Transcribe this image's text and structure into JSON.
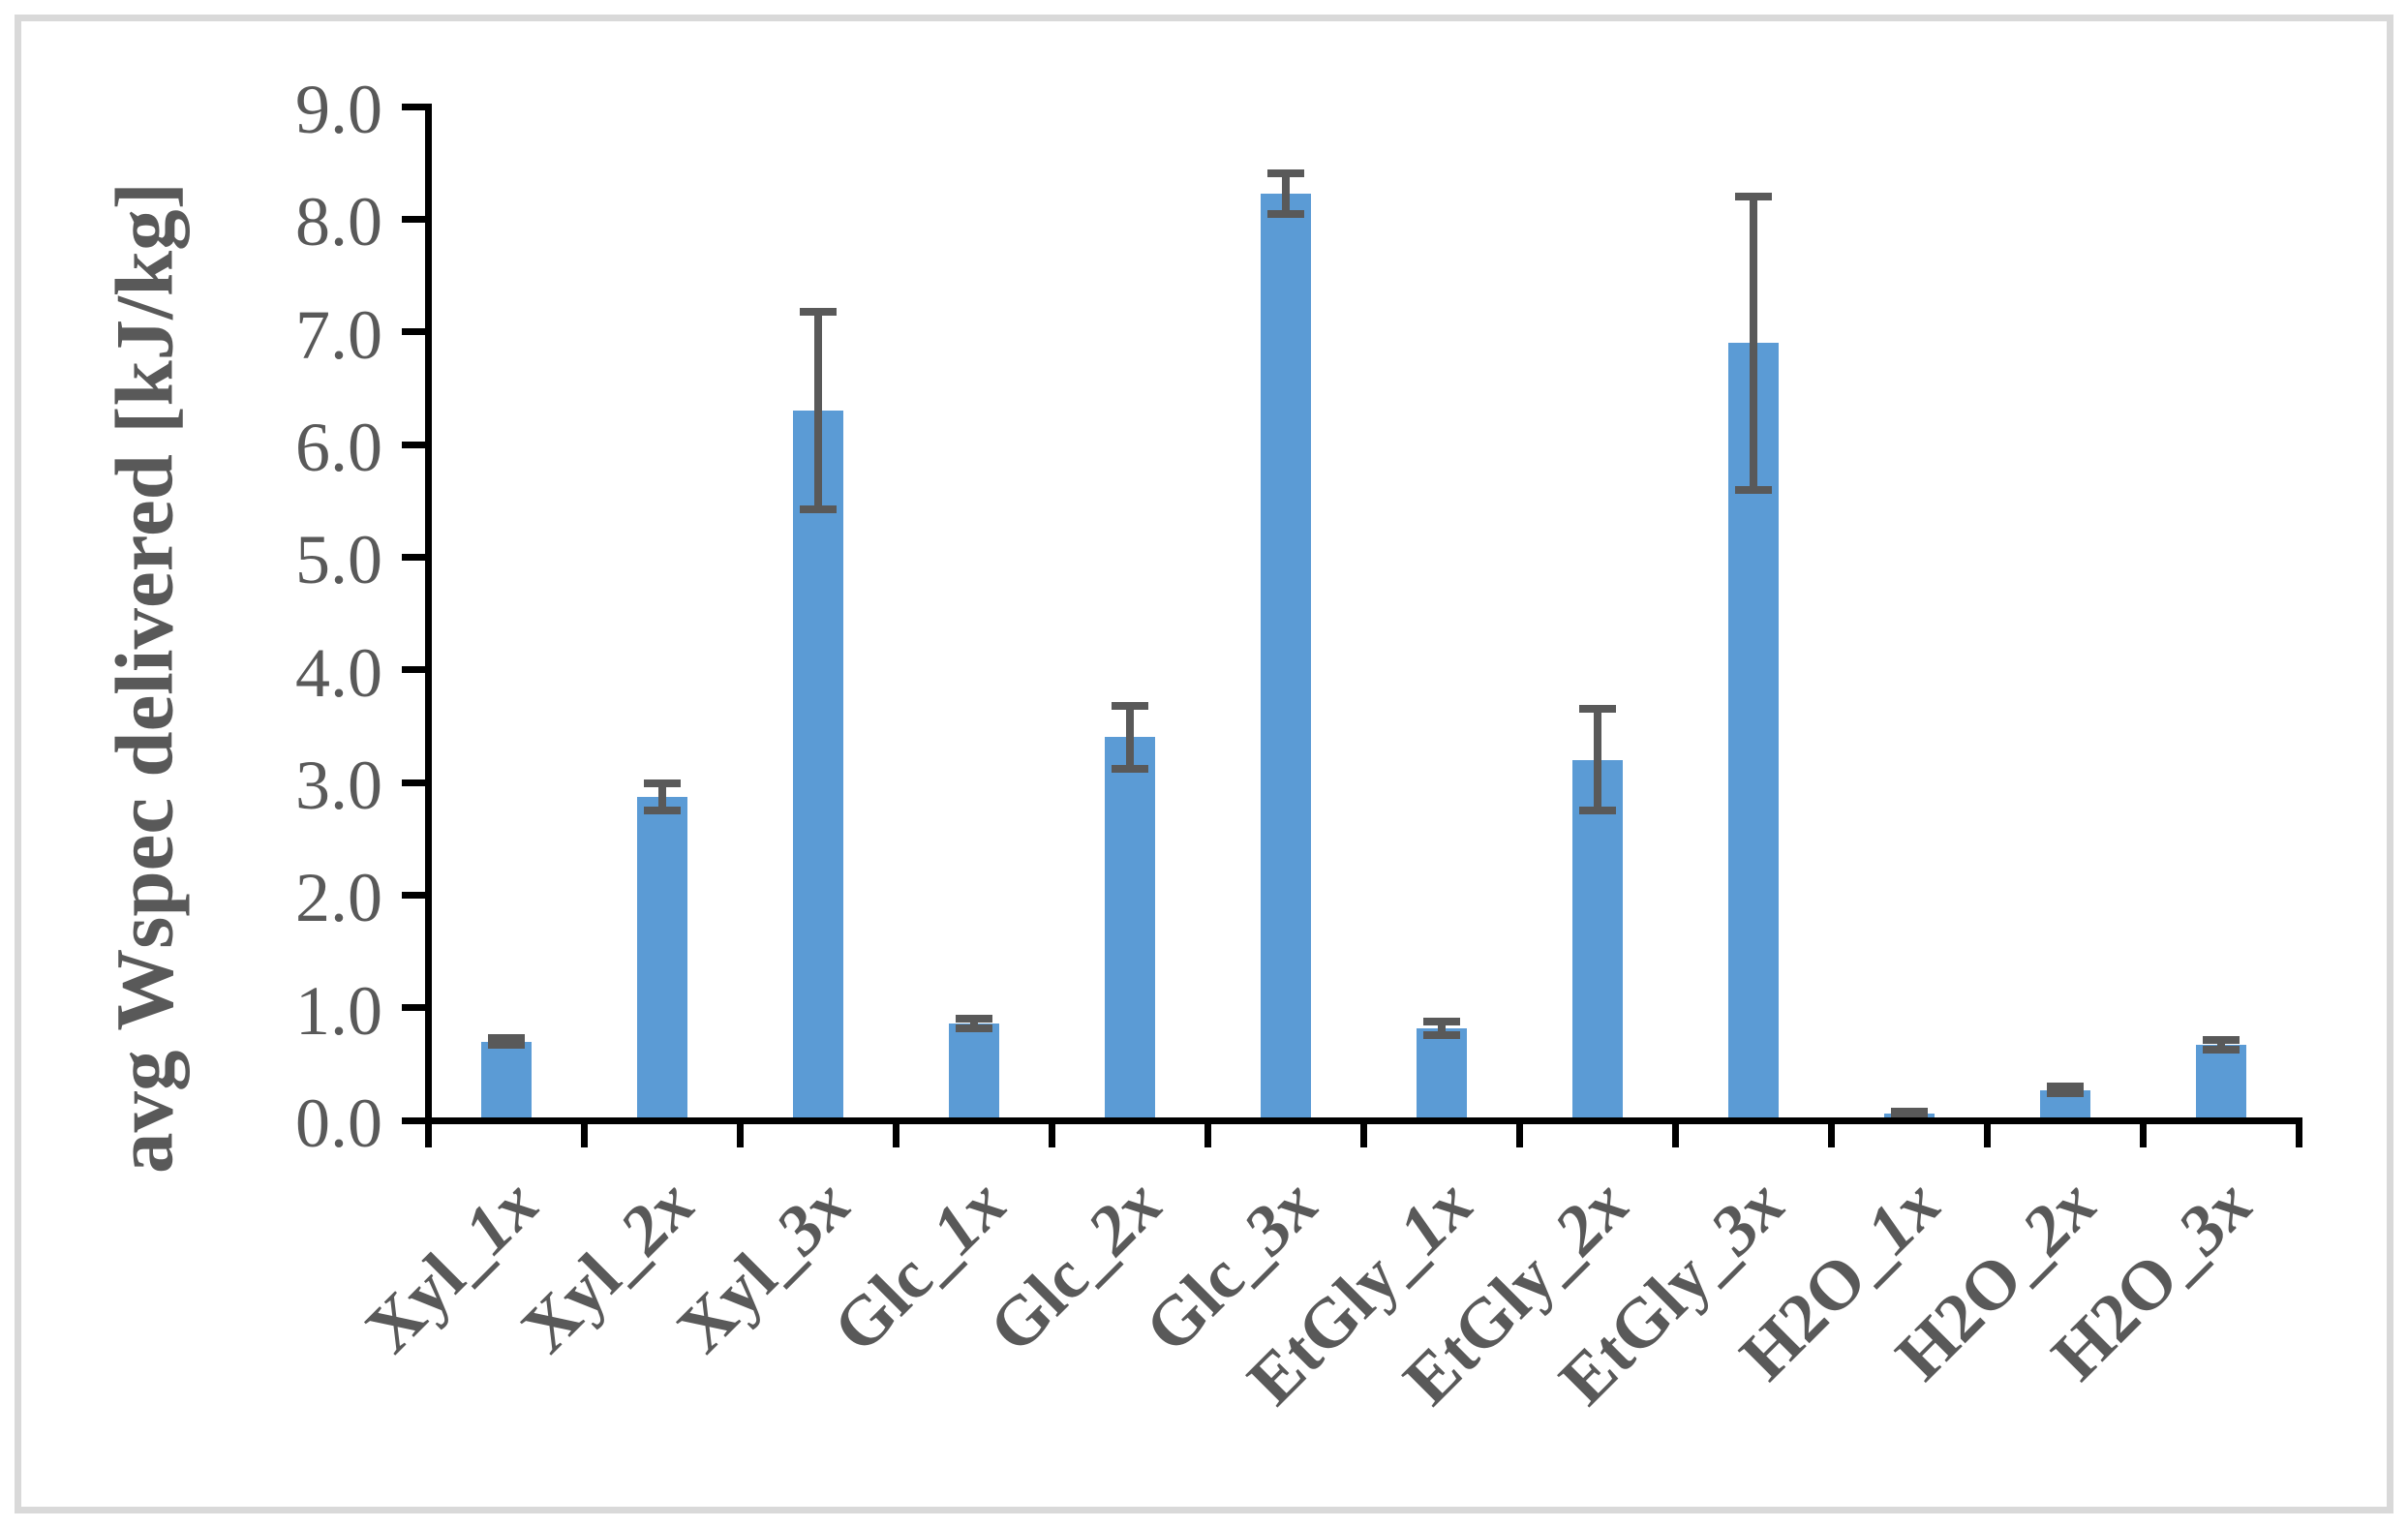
{
  "chart_data": {
    "type": "bar",
    "ylabel": "avg Wspec delivered [kJ/kg]",
    "ylim": [
      0.0,
      9.0
    ],
    "ytick_step": 1.0,
    "ytick_labels": [
      "0.0",
      "1.0",
      "2.0",
      "3.0",
      "4.0",
      "5.0",
      "6.0",
      "7.0",
      "8.0",
      "9.0"
    ],
    "grid": false,
    "legend_position": "none",
    "categories": [
      "Xyl_1x",
      "Xyl_2x",
      "Xyl_3x",
      "Glc_1x",
      "Glc_2x",
      "Glc_3x",
      "EtGly_1x",
      "EtGly_2x",
      "EtGly_3x",
      "H2O_1x",
      "H2O_2x",
      "H2O_3x"
    ],
    "values": [
      0.7,
      2.87,
      6.3,
      0.86,
      3.4,
      8.23,
      0.82,
      3.2,
      6.9,
      0.06,
      0.27,
      0.67
    ],
    "errors": [
      0.03,
      0.12,
      0.88,
      0.04,
      0.28,
      0.18,
      0.06,
      0.45,
      1.3,
      0.02,
      0.03,
      0.04
    ],
    "colors": {
      "bar": "#5B9BD5",
      "error_bar": "#595959",
      "axis": "#000000",
      "tick_label": "#595959",
      "category_label": "#595959",
      "axis_title": "#595959",
      "frame_border": "#D9D9D9",
      "background": "#FFFFFF"
    }
  }
}
